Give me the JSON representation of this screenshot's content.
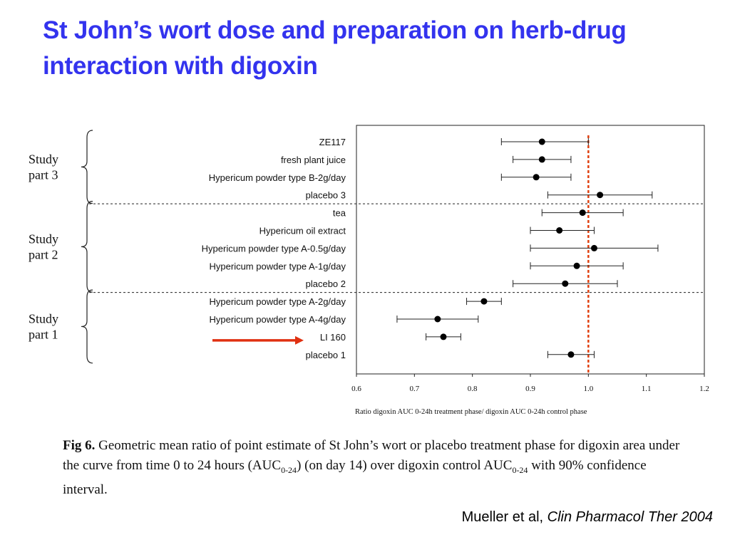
{
  "slide": {
    "title": "St John’s wort dose and preparation on herb-drug interaction with digoxin"
  },
  "groups": [
    {
      "line1": "Study",
      "line2": "part 3"
    },
    {
      "line1": "Study",
      "line2": "part 2"
    },
    {
      "line1": "Study",
      "line2": "part 1"
    }
  ],
  "chart_data": {
    "type": "scatter",
    "subtype": "forest-plot",
    "categories": [
      "ZE117",
      "fresh plant juice",
      "Hypericum powder type B-2g/day",
      "placebo 3",
      "tea",
      "Hypericum oil extract",
      "Hypericum powder type A-0.5g/day",
      "Hypericum powder type A-1g/day",
      "placebo 2",
      "Hypericum powder type A-2g/day",
      "Hypericum powder type A-4g/day",
      "LI 160",
      "placebo 1"
    ],
    "series": [
      {
        "estimate": [
          0.92,
          0.92,
          0.91,
          1.02,
          0.99,
          0.95,
          1.01,
          0.98,
          0.96,
          0.82,
          0.74,
          0.75,
          0.97
        ],
        "ci_low": [
          0.85,
          0.87,
          0.85,
          0.93,
          0.92,
          0.9,
          0.9,
          0.9,
          0.87,
          0.79,
          0.67,
          0.72,
          0.93
        ],
        "ci_high": [
          1.0,
          0.97,
          0.97,
          1.11,
          1.06,
          1.01,
          1.12,
          1.06,
          1.05,
          0.85,
          0.81,
          0.78,
          1.01
        ]
      }
    ],
    "xlim": [
      0.6,
      1.2
    ],
    "xticks": [
      "0.6",
      "0.7",
      "0.8",
      "0.9",
      "1.0",
      "1.1",
      "1.2"
    ],
    "xlabel": "Ratio digoxin AUC 0-24h treatment phase/ digoxin AUC 0-24h control phase",
    "reference_line": 1.0,
    "reference_line_color": "#e04010",
    "group_separators_after": [
      "placebo 3",
      "placebo 2"
    ],
    "highlight_arrow": "LI 160",
    "highlight_color": "#e03010"
  },
  "caption": {
    "fig_label": "Fig 6.",
    "text_part1": "Geometric mean ratio of point estimate of St John’s wort or placebo treatment phase for digoxin area under the curve from time 0 to 24 hours (AUC",
    "sub1": "0-24",
    "text_part2": ") (on day 14) over digoxin control AUC",
    "sub2": "0-24",
    "text_part3": " with 90% confidence interval."
  },
  "citation": {
    "authors": "Mueller et al, ",
    "journal": "Clin Pharmacol Ther 2004"
  }
}
